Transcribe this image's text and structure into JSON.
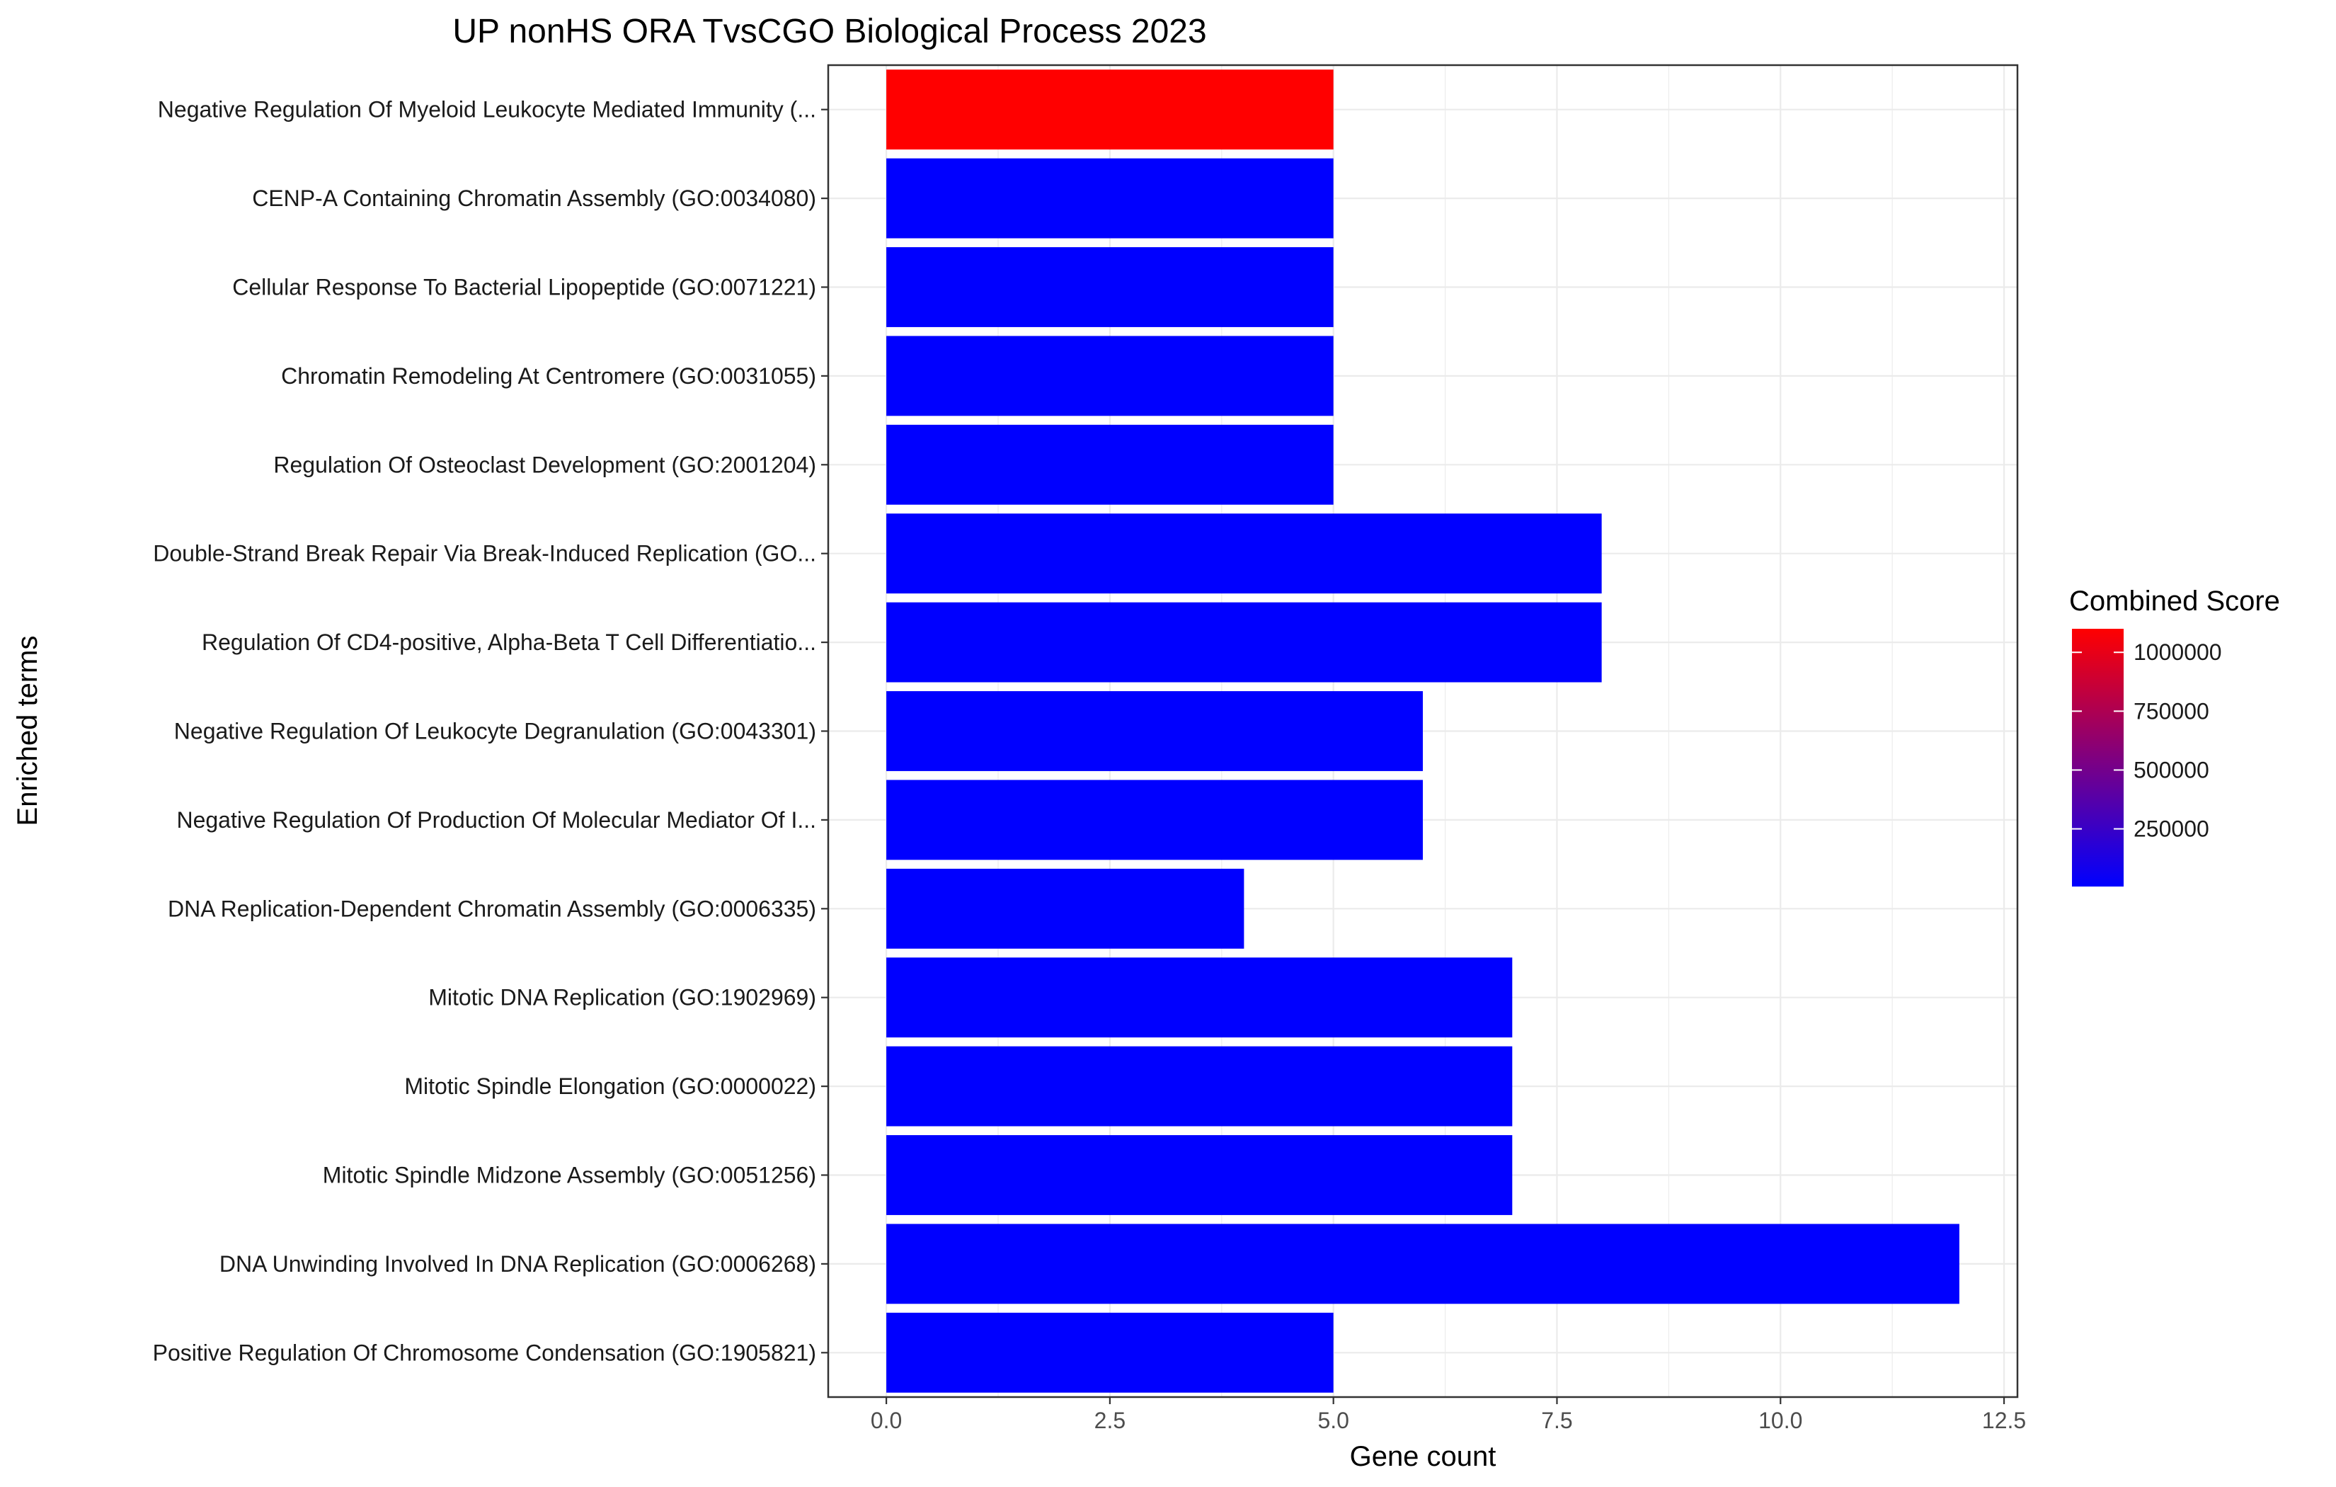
{
  "chart_data": {
    "type": "bar",
    "orientation": "horizontal",
    "title": "UP nonHS ORA TvsCGO Biological Process 2023",
    "xlabel": "Gene count",
    "ylabel": "Enriched terms",
    "xlim": [
      -0.65,
      12.65
    ],
    "x_ticks": [
      0,
      2.5,
      5,
      7.5,
      10,
      12.5
    ],
    "x_tick_labels": [
      "0.0",
      "2.5",
      "5.0",
      "7.5",
      "10.0",
      "12.5"
    ],
    "grid": true,
    "categories": [
      "Negative Regulation Of Myeloid Leukocyte Mediated Immunity (...",
      "CENP-A Containing Chromatin Assembly (GO:0034080)",
      "Cellular Response To Bacterial Lipopeptide (GO:0071221)",
      "Chromatin Remodeling At Centromere (GO:0031055)",
      "Regulation Of Osteoclast Development (GO:2001204)",
      "Double-Strand Break Repair Via Break-Induced Replication (GO...",
      "Regulation Of CD4-positive, Alpha-Beta T Cell Differentiatio...",
      "Negative Regulation Of Leukocyte Degranulation (GO:0043301)",
      "Negative Regulation Of Production Of Molecular Mediator Of I...",
      "DNA Replication-Dependent Chromatin Assembly (GO:0006335)",
      "Mitotic DNA Replication (GO:1902969)",
      "Mitotic Spindle Elongation (GO:0000022)",
      "Mitotic Spindle Midzone Assembly (GO:0051256)",
      "DNA Unwinding Involved In DNA Replication (GO:0006268)",
      "Positive Regulation Of Chromosome Condensation (GO:1905821)"
    ],
    "values": [
      5,
      5,
      5,
      5,
      5,
      8,
      8,
      6,
      6,
      4,
      7,
      7,
      7,
      12,
      5
    ],
    "combined_scores": [
      1100000,
      5000,
      5000,
      5000,
      5000,
      5000,
      5000,
      5000,
      5000,
      5000,
      5000,
      5000,
      5000,
      5000,
      5000
    ],
    "bar_colors": [
      "#FF0000",
      "#0000FF",
      "#0000FF",
      "#0000FF",
      "#0000FF",
      "#0000FF",
      "#0000FF",
      "#0000FF",
      "#0000FF",
      "#0000FF",
      "#0000FF",
      "#0000FF",
      "#0000FF",
      "#0000FF",
      "#0000FF"
    ],
    "legend": {
      "title": "Combined Score",
      "placement": "right",
      "type": "colorbar",
      "color_low": "#0000FF",
      "color_high": "#FF0000",
      "range": [
        5000,
        1100000
      ],
      "ticks": [
        250000,
        500000,
        750000,
        1000000
      ],
      "tick_labels": [
        "250000",
        "500000",
        "750000",
        "1000000"
      ]
    }
  }
}
